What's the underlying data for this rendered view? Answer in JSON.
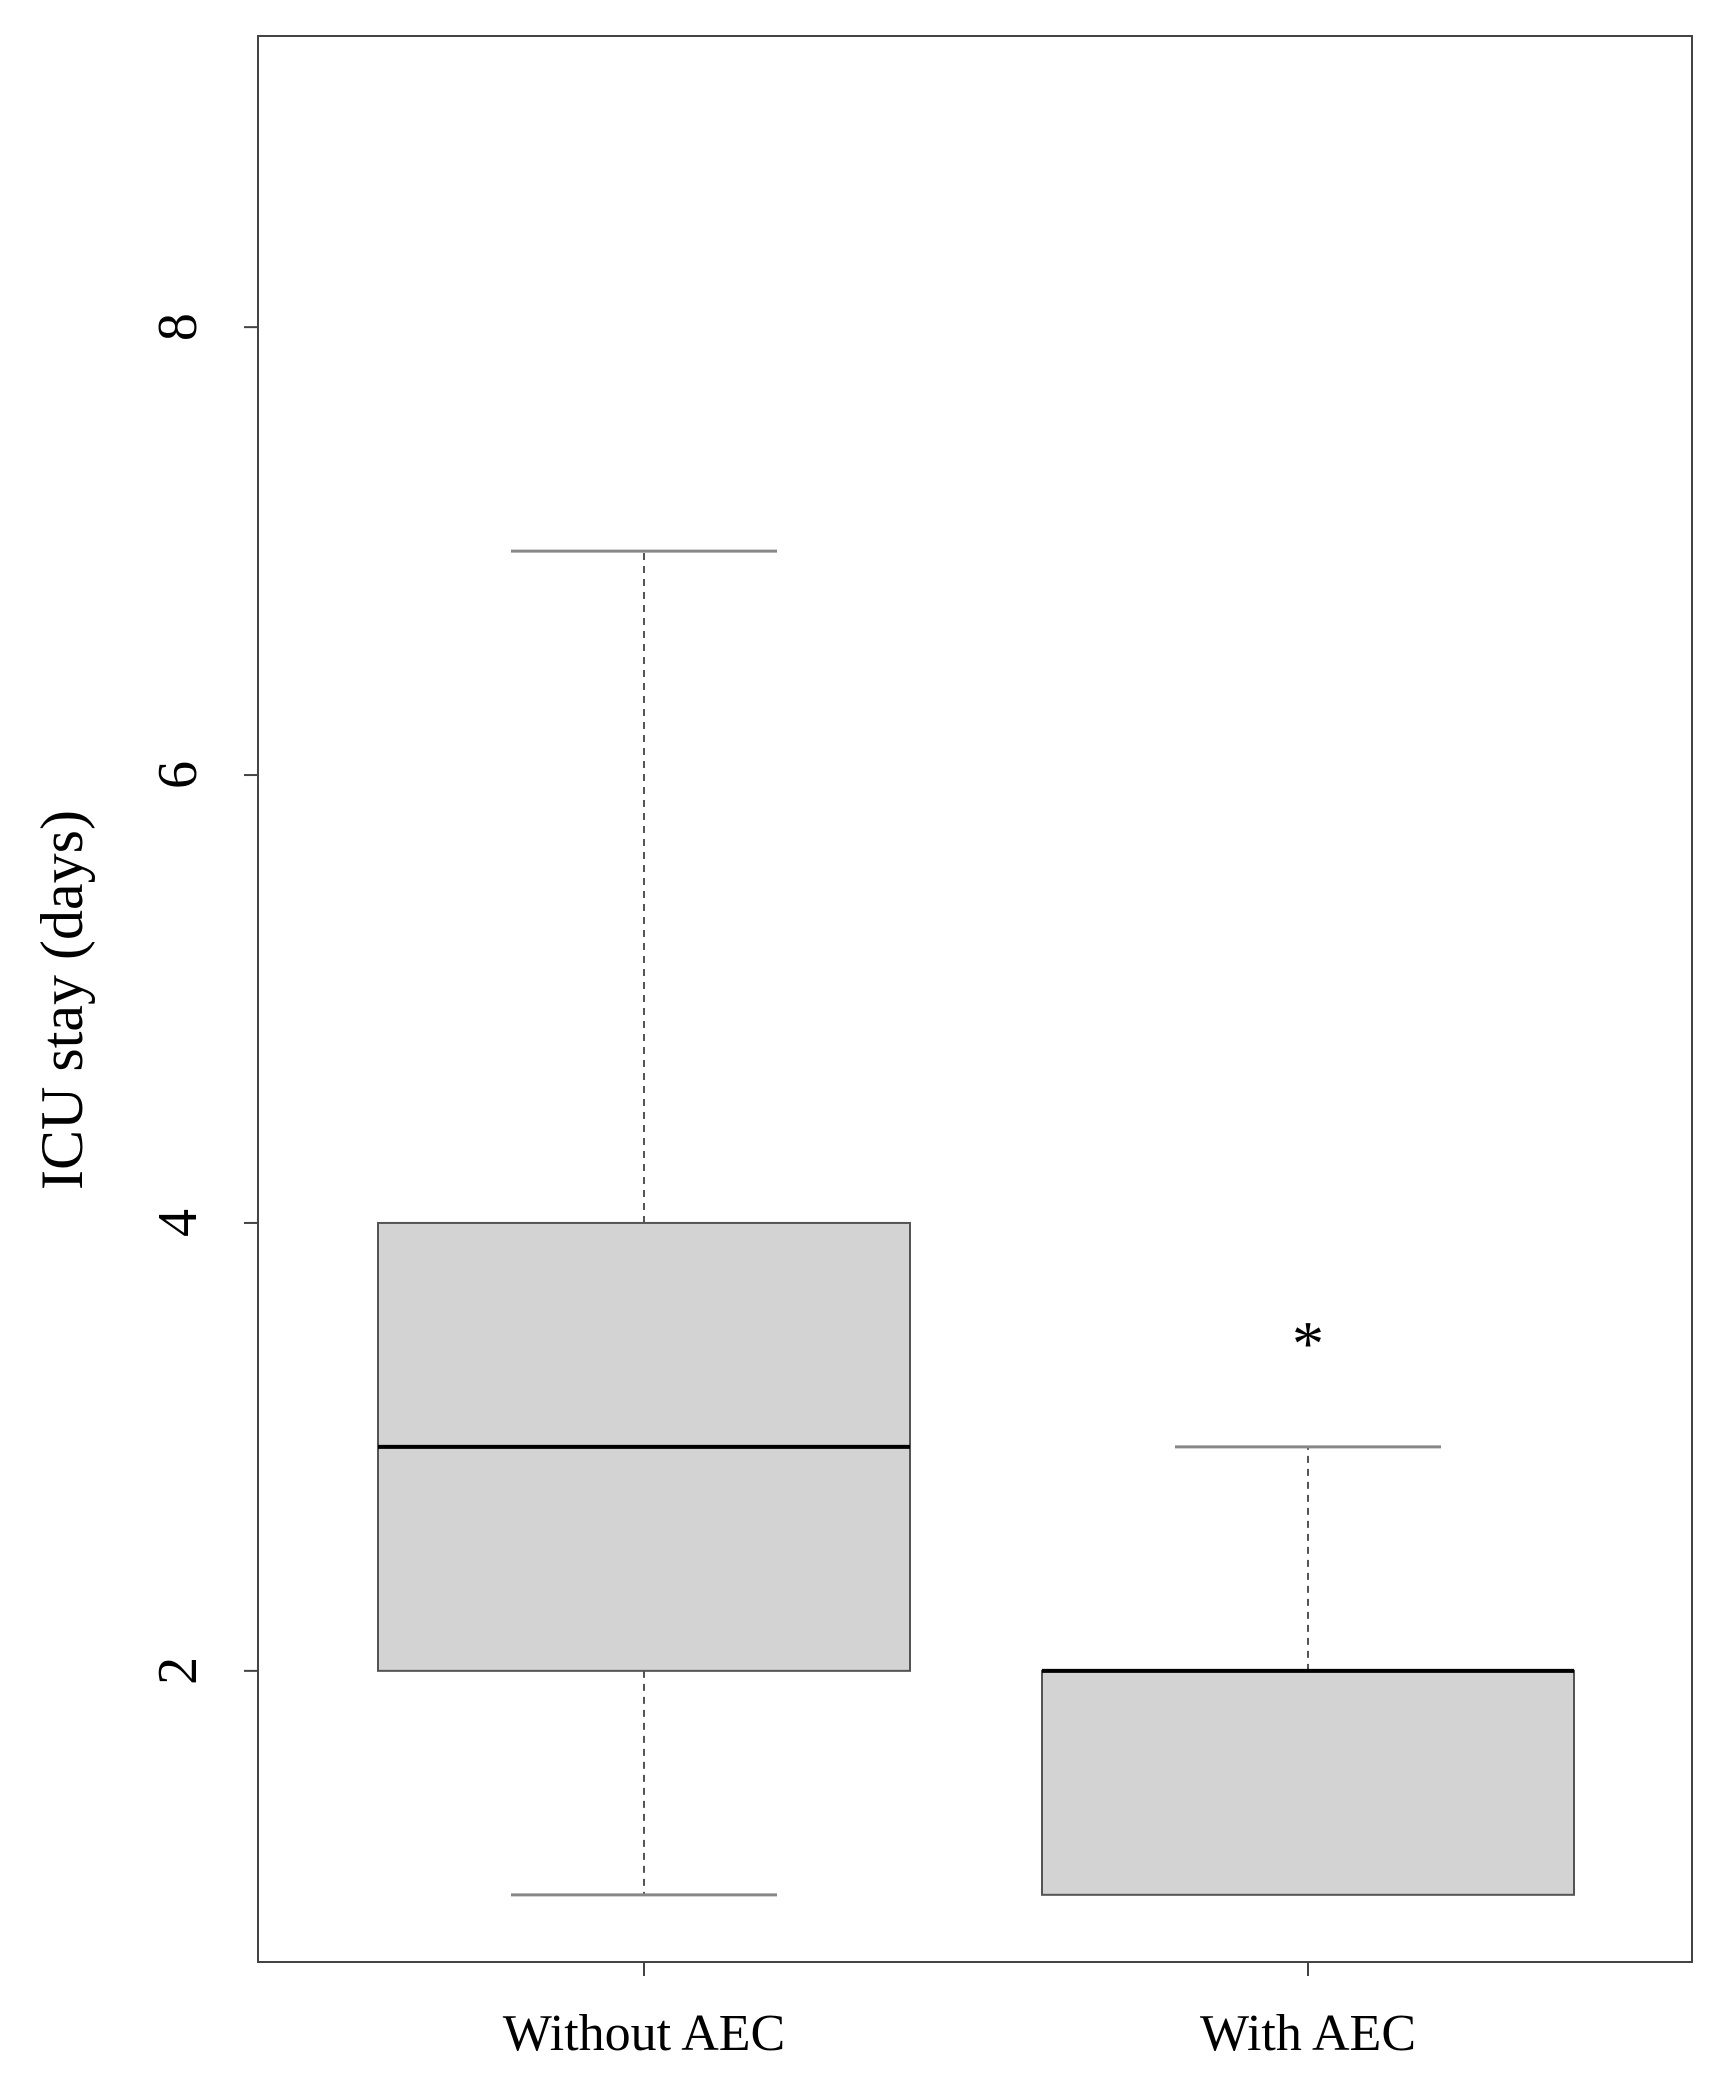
{
  "chart_data": {
    "type": "boxplot",
    "title": "",
    "xlabel": "",
    "ylabel": "ICU stay (days)",
    "ylim": [
      0.7,
      9.3
    ],
    "yticks": [
      2,
      4,
      6,
      8
    ],
    "categories": [
      "Without AEC",
      "With AEC"
    ],
    "boxes": [
      {
        "category": "Without AEC",
        "whisker_low": 1,
        "q1": 2,
        "median": 3,
        "q3": 4,
        "whisker_high": 7
      },
      {
        "category": "With AEC",
        "whisker_low": 1,
        "q1": 1,
        "median": 2,
        "q3": 2,
        "whisker_high": 3
      }
    ],
    "annotations": [
      {
        "text": "*",
        "category": "With AEC",
        "y": 3.5
      }
    ],
    "grid": false,
    "colors": {
      "box_fill": "#d3d3d3",
      "box_stroke": "#555555",
      "median": "#000000",
      "whisker": "#555555",
      "whisker_cap": "#888888",
      "frame": "#444444"
    }
  }
}
